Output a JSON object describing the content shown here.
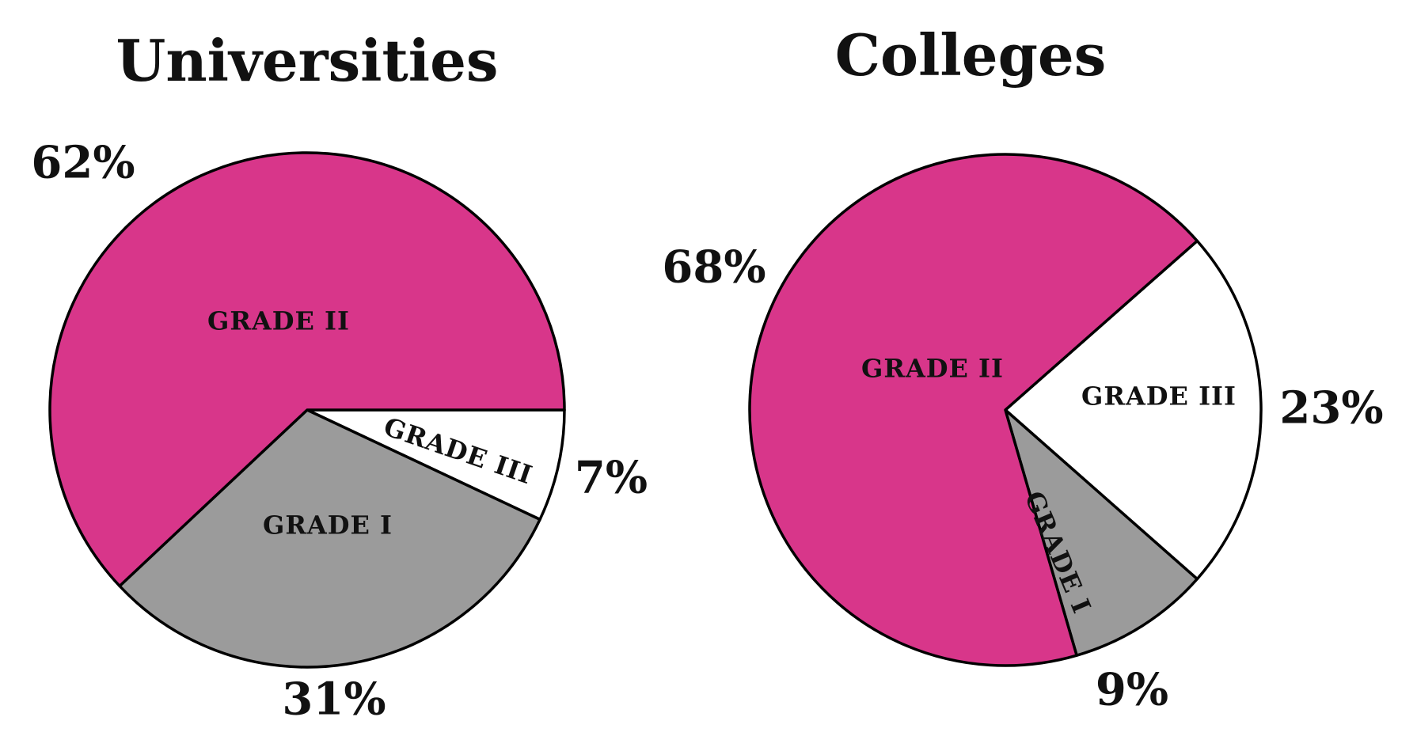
{
  "chart_data": [
    {
      "type": "pie",
      "title": "Universities",
      "slices": [
        {
          "label": "GRADE II",
          "value": 62,
          "value_label": "62%",
          "color": "#d8368a"
        },
        {
          "label": "GRADE I",
          "value": 31,
          "value_label": "31%",
          "color": "#9b9b9b"
        },
        {
          "label": "GRADE III",
          "value": 7,
          "value_label": "7%",
          "color": "#ffffff"
        }
      ]
    },
    {
      "type": "pie",
      "title": "Colleges",
      "slices": [
        {
          "label": "GRADE II",
          "value": 68,
          "value_label": "68%",
          "color": "#d8368a"
        },
        {
          "label": "GRADE I",
          "value": 9,
          "value_label": "9%",
          "color": "#9b9b9b"
        },
        {
          "label": "GRADE III",
          "value": 23,
          "value_label": "23%",
          "color": "#ffffff"
        }
      ]
    }
  ]
}
